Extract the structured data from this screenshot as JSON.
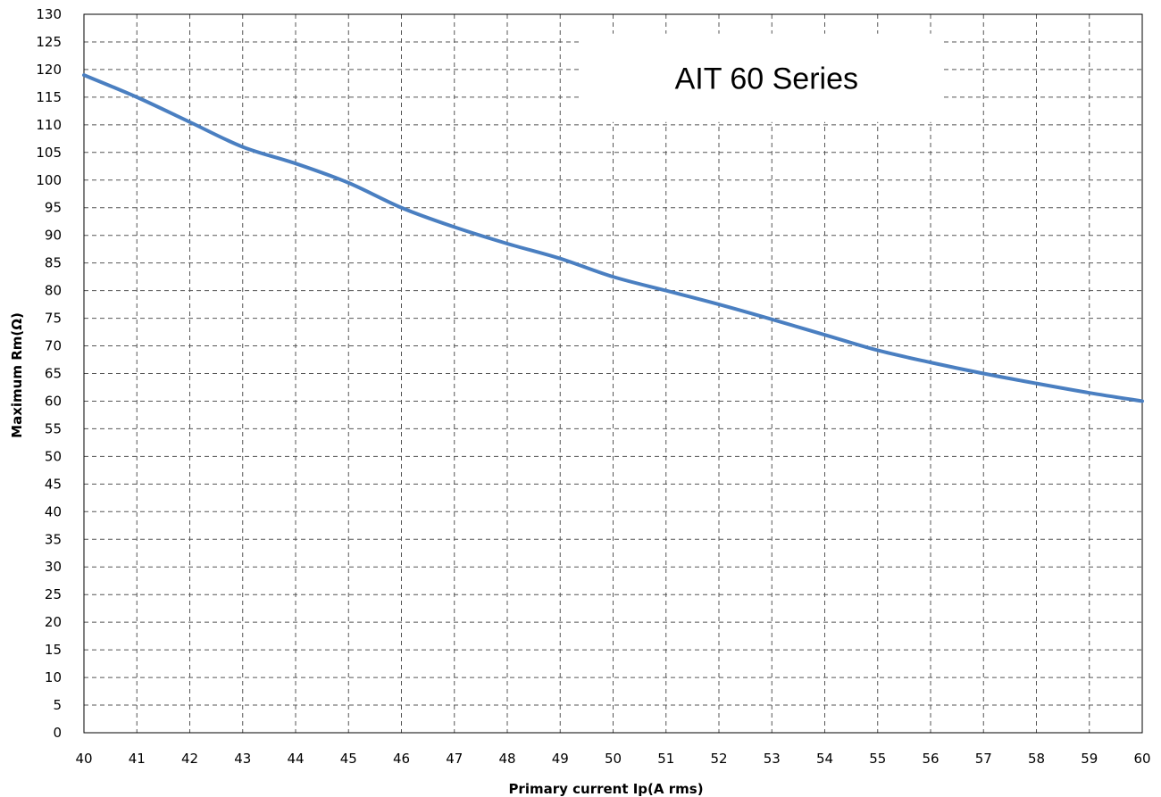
{
  "chart_data": {
    "type": "line",
    "title": "",
    "xlabel": "Primary current Ip(A rms)",
    "ylabel": "Maximum Rm(Ω)",
    "xlim": [
      40,
      60
    ],
    "ylim": [
      0,
      130
    ],
    "x_ticks": [
      40,
      41,
      42,
      43,
      44,
      45,
      46,
      47,
      48,
      49,
      50,
      51,
      52,
      53,
      54,
      55,
      56,
      57,
      58,
      59,
      60
    ],
    "y_ticks": [
      0,
      5,
      10,
      15,
      20,
      25,
      30,
      35,
      40,
      45,
      50,
      55,
      60,
      65,
      70,
      75,
      80,
      85,
      90,
      95,
      100,
      105,
      110,
      115,
      120,
      125,
      130
    ],
    "grid": true,
    "grid_style": "dashed",
    "annotation": "AIT 60 Series",
    "series": [
      {
        "color": "#4a7fc1",
        "x": [
          40,
          41,
          42,
          43,
          44,
          45,
          46,
          47,
          48,
          49,
          50,
          51,
          52,
          53,
          54,
          55,
          56,
          57,
          58,
          59,
          60
        ],
        "y": [
          119,
          115,
          110.5,
          106,
          103,
          99.5,
          95,
          91.5,
          88.5,
          85.8,
          82.5,
          80,
          77.5,
          74.8,
          72,
          69.2,
          67,
          65,
          63.2,
          61.5,
          60
        ]
      }
    ]
  }
}
